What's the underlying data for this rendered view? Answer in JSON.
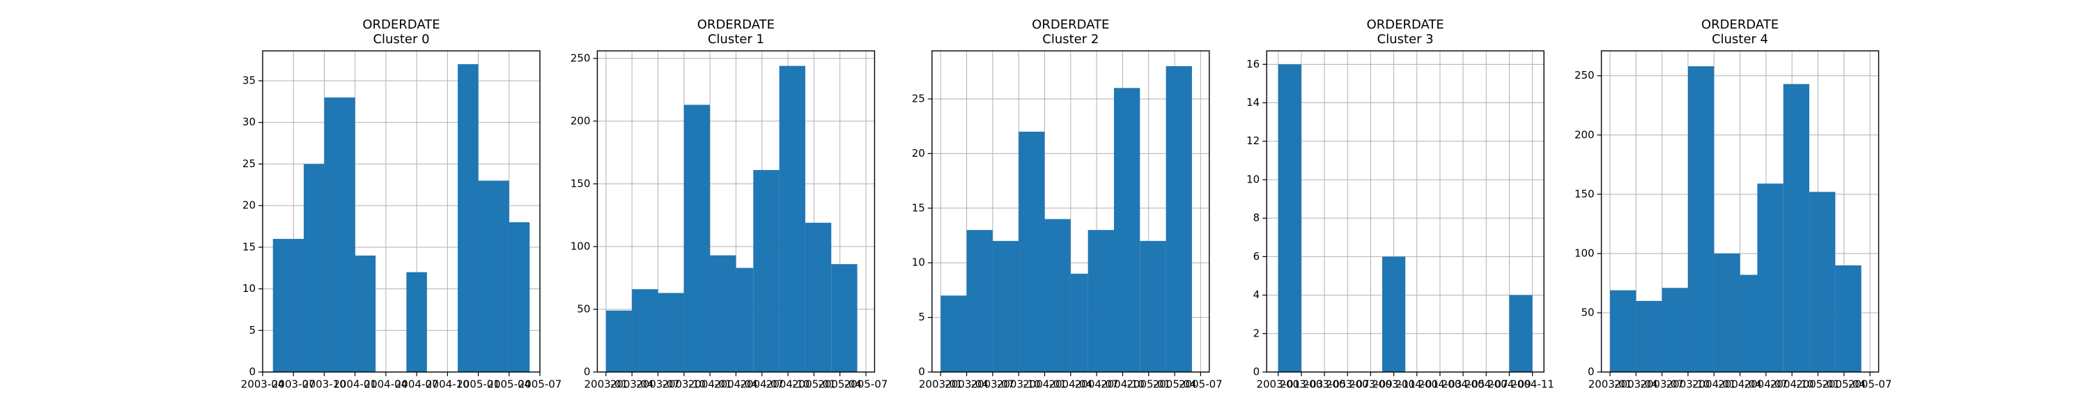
{
  "chart_data": [
    {
      "type": "histogram",
      "title": "ORDERDATE",
      "subtitle": "Cluster 0",
      "color": "#1f77b4",
      "grid": true,
      "bins": [
        "2003-05",
        "2003-08",
        "2003-10",
        "2004-01",
        "2004-03",
        "2004-06",
        "2004-08",
        "2004-11",
        "2005-01",
        "2005-04",
        "2005-06"
      ],
      "values": [
        16,
        25,
        33,
        14,
        0,
        12,
        0,
        37,
        23,
        18
      ],
      "xlim": [
        "2003-04",
        "2005-07"
      ],
      "xticks": [
        "2003-04",
        "2003-07",
        "2003-10",
        "2004-01",
        "2004-04",
        "2004-07",
        "2004-10",
        "2005-01",
        "2005-04",
        "2005-07"
      ],
      "ylim": [
        0,
        38.6
      ],
      "yticks": [
        0,
        5,
        10,
        15,
        20,
        25,
        30,
        35
      ]
    },
    {
      "type": "histogram",
      "title": "ORDERDATE",
      "subtitle": "Cluster 1",
      "color": "#1f77b4",
      "grid": true,
      "bins": [
        "2003-01",
        "2003-04",
        "2003-07",
        "2003-10",
        "2004-01",
        "2004-04",
        "2004-06",
        "2004-09",
        "2004-12",
        "2005-03",
        "2005-06"
      ],
      "values": [
        49,
        66,
        63,
        213,
        93,
        83,
        161,
        244,
        119,
        86
      ],
      "xlim": [
        "2002-12",
        "2005-08"
      ],
      "xticks": [
        "2003-01",
        "2003-04",
        "2003-07",
        "2003-10",
        "2004-01",
        "2004-04",
        "2004-07",
        "2004-10",
        "2005-01",
        "2005-04",
        "2005-07"
      ],
      "ylim": [
        0,
        256
      ],
      "yticks": [
        0,
        50,
        100,
        150,
        200,
        250
      ]
    },
    {
      "type": "histogram",
      "title": "ORDERDATE",
      "subtitle": "Cluster 2",
      "color": "#1f77b4",
      "grid": true,
      "bins": [
        "2003-01",
        "2003-04",
        "2003-07",
        "2003-10",
        "2004-01",
        "2004-04",
        "2004-06",
        "2004-09",
        "2004-12",
        "2005-03",
        "2005-06"
      ],
      "values": [
        7,
        13,
        12,
        22,
        14,
        9,
        13,
        26,
        12,
        28
      ],
      "xlim": [
        "2002-12",
        "2005-08"
      ],
      "xticks": [
        "2003-01",
        "2003-04",
        "2003-07",
        "2003-10",
        "2004-01",
        "2004-04",
        "2004-07",
        "2004-10",
        "2005-01",
        "2005-04",
        "2005-07"
      ],
      "ylim": [
        0,
        29.4
      ],
      "yticks": [
        0,
        5,
        10,
        15,
        20,
        25
      ]
    },
    {
      "type": "histogram",
      "title": "ORDERDATE",
      "subtitle": "Cluster 3",
      "color": "#1f77b4",
      "grid": true,
      "bins": [
        "2003-01",
        "2003-03",
        "2003-05",
        "2003-08",
        "2003-10",
        "2003-12",
        "2004-02",
        "2004-05",
        "2004-07",
        "2004-09",
        "2004-11"
      ],
      "values": [
        16,
        0,
        0,
        0,
        6,
        0,
        0,
        0,
        0,
        4
      ],
      "xlim": [
        "2002-12",
        "2004-12"
      ],
      "xticks": [
        "2003-01",
        "2003-03",
        "2003-05",
        "2003-07",
        "2003-09",
        "2003-11",
        "2004-01",
        "2004-03",
        "2004-05",
        "2004-07",
        "2004-09",
        "2004-11"
      ],
      "ylim": [
        0,
        16.7
      ],
      "yticks": [
        0,
        2,
        4,
        6,
        8,
        10,
        12,
        14,
        16
      ]
    },
    {
      "type": "histogram",
      "title": "ORDERDATE",
      "subtitle": "Cluster 4",
      "color": "#1f77b4",
      "grid": true,
      "bins": [
        "2003-01",
        "2003-04",
        "2003-07",
        "2003-10",
        "2004-01",
        "2004-04",
        "2004-06",
        "2004-09",
        "2004-12",
        "2005-03",
        "2005-06"
      ],
      "values": [
        69,
        60,
        71,
        258,
        100,
        82,
        159,
        243,
        152,
        90
      ],
      "xlim": [
        "2002-12",
        "2005-08"
      ],
      "xticks": [
        "2003-01",
        "2003-04",
        "2003-07",
        "2003-10",
        "2004-01",
        "2004-04",
        "2004-07",
        "2004-10",
        "2005-01",
        "2005-04",
        "2005-07"
      ],
      "ylim": [
        0,
        271
      ],
      "yticks": [
        0,
        50,
        100,
        150,
        200,
        250
      ]
    }
  ]
}
